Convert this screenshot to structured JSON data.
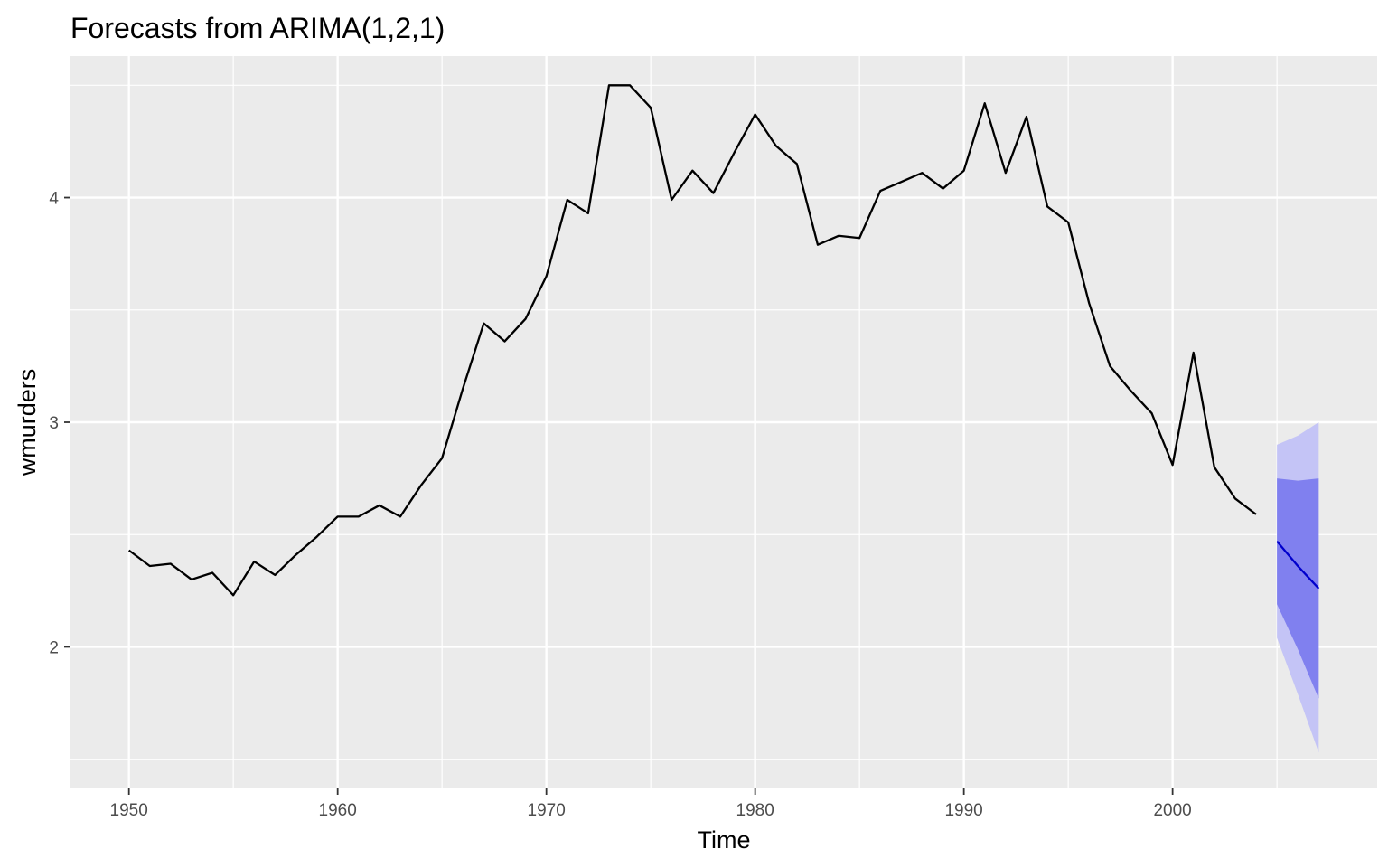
{
  "chart_data": {
    "type": "line",
    "title": "Forecasts from ARIMA(1,2,1)",
    "xlabel": "Time",
    "ylabel": "wmurders",
    "xlim": [
      1947.2,
      2009.8
    ],
    "ylim": [
      1.37,
      4.63
    ],
    "x_ticks": [
      1950,
      1960,
      1970,
      1980,
      1990,
      2000
    ],
    "x_tick_labels": [
      "1950",
      "1960",
      "1970",
      "1980",
      "1990",
      "2000"
    ],
    "y_ticks": [
      2,
      3,
      4
    ],
    "y_tick_labels": [
      "2",
      "3",
      "4"
    ],
    "grid": true,
    "legend": "none",
    "series": [
      {
        "role": "observed",
        "color": "#000000",
        "x": [
          1950,
          1951,
          1952,
          1953,
          1954,
          1955,
          1956,
          1957,
          1958,
          1959,
          1960,
          1961,
          1962,
          1963,
          1964,
          1965,
          1966,
          1967,
          1968,
          1969,
          1970,
          1971,
          1972,
          1973,
          1974,
          1975,
          1976,
          1977,
          1978,
          1979,
          1980,
          1981,
          1982,
          1983,
          1984,
          1985,
          1986,
          1987,
          1988,
          1989,
          1990,
          1991,
          1992,
          1993,
          1994,
          1995,
          1996,
          1997,
          1998,
          1999,
          2000,
          2001,
          2002,
          2003,
          2004
        ],
        "y": [
          2.43,
          2.36,
          2.37,
          2.3,
          2.33,
          2.23,
          2.38,
          2.32,
          2.41,
          2.49,
          2.58,
          2.58,
          2.63,
          2.58,
          2.72,
          2.84,
          3.15,
          3.44,
          3.36,
          3.46,
          3.65,
          3.99,
          3.93,
          4.5,
          4.5,
          4.4,
          3.99,
          4.12,
          4.02,
          4.2,
          4.37,
          4.23,
          4.15,
          3.79,
          3.83,
          3.82,
          4.03,
          4.07,
          4.11,
          4.04,
          4.12,
          4.42,
          4.11,
          4.36,
          3.96,
          3.89,
          3.53,
          3.25,
          3.14,
          3.04,
          2.81,
          3.31,
          2.8,
          2.66,
          2.59
        ]
      },
      {
        "role": "forecast",
        "color": "#0000cc",
        "x": [
          2005,
          2006,
          2007
        ],
        "y": [
          2.47,
          2.36,
          2.26
        ]
      }
    ],
    "intervals": [
      {
        "level": 95,
        "color": "#c4c4f6",
        "x": [
          2005,
          2006,
          2007
        ],
        "lower": [
          2.04,
          1.79,
          1.53
        ],
        "upper": [
          2.9,
          2.94,
          3.0
        ]
      },
      {
        "level": 80,
        "color": "#8080ef",
        "x": [
          2005,
          2006,
          2007
        ],
        "lower": [
          2.19,
          1.99,
          1.77
        ],
        "upper": [
          2.75,
          2.74,
          2.75
        ]
      }
    ]
  }
}
